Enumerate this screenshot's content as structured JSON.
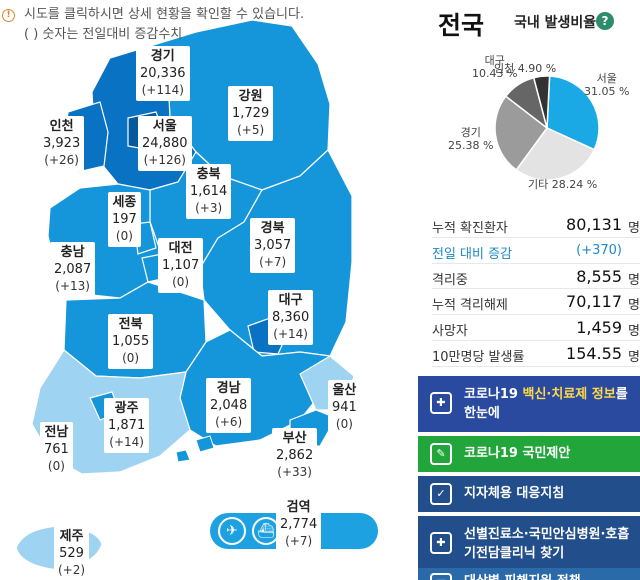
{
  "notice": {
    "icon": "info-icon",
    "line1": "시도를 클릭하시면 상세 현황을 확인할 수 있습니다.",
    "line2": "( ) 숫자는 전일대비 증감수치"
  },
  "regions": [
    {
      "name": "경기",
      "count": "20,336",
      "diff": "(+114)"
    },
    {
      "name": "강원",
      "count": "1,729",
      "diff": "(+5)"
    },
    {
      "name": "인천",
      "count": "3,923",
      "diff": "(+26)"
    },
    {
      "name": "서울",
      "count": "24,880",
      "diff": "(+126)"
    },
    {
      "name": "충북",
      "count": "1,614",
      "diff": "(+3)"
    },
    {
      "name": "세종",
      "count": "197",
      "diff": "(0)"
    },
    {
      "name": "충남",
      "count": "2,087",
      "diff": "(+13)"
    },
    {
      "name": "대전",
      "count": "1,107",
      "diff": "(0)"
    },
    {
      "name": "경북",
      "count": "3,057",
      "diff": "(+7)"
    },
    {
      "name": "대구",
      "count": "8,360",
      "diff": "(+14)"
    },
    {
      "name": "전북",
      "count": "1,055",
      "diff": "(0)"
    },
    {
      "name": "경남",
      "count": "2,048",
      "diff": "(+6)"
    },
    {
      "name": "울산",
      "count": "941",
      "diff": "(0)"
    },
    {
      "name": "광주",
      "count": "1,871",
      "diff": "(+14)"
    },
    {
      "name": "전남",
      "count": "761",
      "diff": "(0)"
    },
    {
      "name": "부산",
      "count": "2,862",
      "diff": "(+33)"
    },
    {
      "name": "검역",
      "count": "2,774",
      "diff": "(+7)"
    },
    {
      "name": "제주",
      "count": "529",
      "diff": "(+2)"
    }
  ],
  "quarantine_icons": [
    "airplane-icon",
    "ship-icon"
  ],
  "panel": {
    "title": "전국",
    "rate_title": "국내 발생비율",
    "help": "?"
  },
  "pie": {
    "type": "pie",
    "slices": [
      {
        "name": "서울",
        "percent": 31.05,
        "label": "31.05 %",
        "color": "#1ba9e6"
      },
      {
        "name": "기타",
        "percent": 28.24,
        "label": "28.24 %",
        "color": "#e3e3e3"
      },
      {
        "name": "경기",
        "percent": 25.38,
        "label": "25.38 %",
        "color": "#9b9b9b"
      },
      {
        "name": "대구",
        "percent": 10.43,
        "label": "10.43 %",
        "color": "#666666"
      },
      {
        "name": "인천",
        "percent": 4.9,
        "label": "4.90 %",
        "color": "#333333"
      }
    ]
  },
  "stats": [
    {
      "label": "누적 확진환자",
      "value": "80,131",
      "unit": "명"
    },
    {
      "label": "전일 대비 증감",
      "value": "(+370)",
      "unit": ""
    },
    {
      "label": "격리중",
      "value": "8,555",
      "unit": "명"
    },
    {
      "label": "누적 격리해제",
      "value": "70,117",
      "unit": "명"
    },
    {
      "label": "사망자",
      "value": "1,459",
      "unit": "명"
    },
    {
      "label": "10만명당 발생률",
      "value": "154.55",
      "unit": "명"
    }
  ],
  "buttons": {
    "vaccine": {
      "prefix": "코로나19 ",
      "highlight": "백신·치료제 정보",
      "suffix": "를 한눈에"
    },
    "proposal": "코로나19 국민제안",
    "guidelines": "지자체용 대응지침",
    "clinic": "선별진료소·국민안심병원·호흡기전담클리닉 찾기",
    "support": "대상별 피해지원 정책"
  },
  "colors": {
    "map_dark": "#0a72c2",
    "map_mid": "#1596db",
    "map_light": "#9fd3f2",
    "accent_blue": "#1e88c8"
  }
}
